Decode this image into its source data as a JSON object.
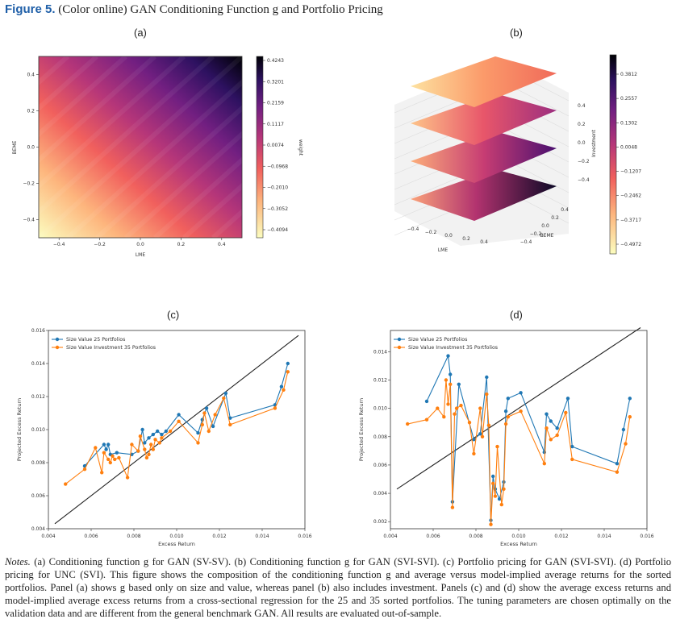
{
  "figure": {
    "label": "Figure 5.",
    "title": "(Color online) GAN Conditioning Function g and Portfolio Pricing"
  },
  "panels": {
    "a": {
      "label": "(a)"
    },
    "b": {
      "label": "(b)"
    },
    "c": {
      "label": "(c)"
    },
    "d": {
      "label": "(d)"
    }
  },
  "chart_data": [
    {
      "panel": "a",
      "type": "heatmap",
      "xlabel": "LME",
      "ylabel": "BEME",
      "x_ticks": [
        "−0.4",
        "−0.2",
        "0.0",
        "0.2",
        "0.4"
      ],
      "y_ticks": [
        "0.4",
        "0.2",
        "0.0",
        "−0.2",
        "−0.4"
      ],
      "xlim": [
        -0.5,
        0.5
      ],
      "ylim": [
        -0.5,
        0.5
      ],
      "colorbar": {
        "label": "weight",
        "range": [
          -0.4094,
          0.4243
        ],
        "ticks": [
          "0.4243",
          "0.3201",
          "0.2159",
          "0.1117",
          "0.0074",
          "−0.0968",
          "−0.2010",
          "−0.3052",
          "−0.4094"
        ]
      },
      "colormap": "magma"
    },
    {
      "panel": "b",
      "type": "surface",
      "xlabel": "LME",
      "ylabel": "BEME",
      "zlabel": "Investment",
      "x_ticks": [
        "−0.4",
        "−0.2",
        "0.0",
        "0.2",
        "0.4"
      ],
      "y_ticks": [
        "0.4",
        "0.2",
        "0.0",
        "−0.2",
        "−0.4"
      ],
      "z_ticks": [
        "0.4",
        "0.2",
        "0.0",
        "−0.2",
        "−0.4"
      ],
      "colorbar": {
        "range": [
          -0.4972,
          0.3812
        ],
        "ticks": [
          "0.3812",
          "0.2557",
          "0.1302",
          "0.0048",
          "−0.1207",
          "−0.2462",
          "−0.3717",
          "−0.4972"
        ]
      },
      "colormap": "magma"
    },
    {
      "panel": "c",
      "type": "line",
      "xlabel": "Excess Return",
      "ylabel": "Projected Excess Return",
      "xlim": [
        0.004,
        0.016
      ],
      "ylim": [
        0.004,
        0.016
      ],
      "x_ticks": [
        "0.004",
        "0.006",
        "0.008",
        "0.010",
        "0.012",
        "0.014",
        "0.016"
      ],
      "y_ticks": [
        "0.004",
        "0.006",
        "0.008",
        "0.010",
        "0.012",
        "0.014",
        "0.016"
      ],
      "legend_position": "top-left",
      "reference_line": [
        [
          0.0043,
          0.0043
        ],
        [
          0.0157,
          0.0157
        ]
      ],
      "series": [
        {
          "name": "Size Value 25 Portfolios",
          "color": "#1f77b4",
          "points": [
            [
              0.0057,
              0.0078
            ],
            [
              0.0066,
              0.0091
            ],
            [
              0.0067,
              0.0088
            ],
            [
              0.0068,
              0.0091
            ],
            [
              0.0069,
              0.0085
            ],
            [
              0.0072,
              0.0086
            ],
            [
              0.0079,
              0.0085
            ],
            [
              0.0082,
              0.0087
            ],
            [
              0.0084,
              0.01
            ],
            [
              0.0085,
              0.0092
            ],
            [
              0.0087,
              0.0095
            ],
            [
              0.0089,
              0.0097
            ],
            [
              0.0091,
              0.0099
            ],
            [
              0.0093,
              0.0097
            ],
            [
              0.0095,
              0.0099
            ],
            [
              0.0101,
              0.0109
            ],
            [
              0.011,
              0.0098
            ],
            [
              0.0112,
              0.0106
            ],
            [
              0.0114,
              0.0113
            ],
            [
              0.0117,
              0.0102
            ],
            [
              0.0123,
              0.0122
            ],
            [
              0.0125,
              0.0107
            ],
            [
              0.0146,
              0.0115
            ],
            [
              0.0149,
              0.0126
            ],
            [
              0.0152,
              0.014
            ]
          ]
        },
        {
          "name": "Size Value Investment 35 Portfolios",
          "color": "#ff7f0e",
          "points": [
            [
              0.0048,
              0.0067
            ],
            [
              0.0057,
              0.0076
            ],
            [
              0.0062,
              0.0089
            ],
            [
              0.0065,
              0.0074
            ],
            [
              0.0066,
              0.0086
            ],
            [
              0.0068,
              0.0082
            ],
            [
              0.0069,
              0.008
            ],
            [
              0.007,
              0.0084
            ],
            [
              0.0071,
              0.0082
            ],
            [
              0.0073,
              0.0083
            ],
            [
              0.0077,
              0.0071
            ],
            [
              0.0079,
              0.0091
            ],
            [
              0.0082,
              0.0087
            ],
            [
              0.0083,
              0.0096
            ],
            [
              0.0085,
              0.0088
            ],
            [
              0.0086,
              0.0083
            ],
            [
              0.0087,
              0.0085
            ],
            [
              0.0088,
              0.0091
            ],
            [
              0.0089,
              0.0088
            ],
            [
              0.009,
              0.0094
            ],
            [
              0.0092,
              0.0092
            ],
            [
              0.0093,
              0.0095
            ],
            [
              0.0097,
              0.0099
            ],
            [
              0.0101,
              0.0105
            ],
            [
              0.011,
              0.0092
            ],
            [
              0.0112,
              0.0103
            ],
            [
              0.0113,
              0.011
            ],
            [
              0.0115,
              0.0099
            ],
            [
              0.0118,
              0.0109
            ],
            [
              0.0122,
              0.0119
            ],
            [
              0.0125,
              0.0103
            ],
            [
              0.0146,
              0.0113
            ],
            [
              0.015,
              0.0124
            ],
            [
              0.0152,
              0.0135
            ]
          ]
        }
      ]
    },
    {
      "panel": "d",
      "type": "line",
      "xlabel": "Excess Return",
      "ylabel": "Projected Excess Return",
      "xlim": [
        0.004,
        0.016
      ],
      "ylim": [
        0.0015,
        0.0155
      ],
      "x_ticks": [
        "0.004",
        "0.006",
        "0.008",
        "0.010",
        "0.012",
        "0.014",
        "0.016"
      ],
      "y_ticks": [
        "0.002",
        "0.004",
        "0.006",
        "0.008",
        "0.010",
        "0.012",
        "0.014"
      ],
      "legend_position": "top-left",
      "reference_line": [
        [
          0.0043,
          0.0043
        ],
        [
          0.0157,
          0.0157
        ]
      ],
      "series": [
        {
          "name": "Size Value 25 Portfolios",
          "color": "#1f77b4",
          "points": [
            [
              0.0057,
              0.0105
            ],
            [
              0.0067,
              0.0137
            ],
            [
              0.0068,
              0.0124
            ],
            [
              0.0069,
              0.0034
            ],
            [
              0.0072,
              0.0117
            ],
            [
              0.0079,
              0.0078
            ],
            [
              0.0082,
              0.0082
            ],
            [
              0.0085,
              0.0122
            ],
            [
              0.0087,
              0.0021
            ],
            [
              0.0088,
              0.0052
            ],
            [
              0.0089,
              0.0043
            ],
            [
              0.0091,
              0.0036
            ],
            [
              0.0093,
              0.0048
            ],
            [
              0.0094,
              0.0098
            ],
            [
              0.0095,
              0.0107
            ],
            [
              0.0101,
              0.0111
            ],
            [
              0.0112,
              0.0069
            ],
            [
              0.0113,
              0.0096
            ],
            [
              0.0115,
              0.0091
            ],
            [
              0.0118,
              0.0086
            ],
            [
              0.0123,
              0.0107
            ],
            [
              0.0125,
              0.0073
            ],
            [
              0.0146,
              0.0061
            ],
            [
              0.0149,
              0.0085
            ],
            [
              0.0152,
              0.0107
            ]
          ]
        },
        {
          "name": "Size Value Investment 35 Portfolios",
          "color": "#ff7f0e",
          "points": [
            [
              0.0048,
              0.0089
            ],
            [
              0.0057,
              0.0092
            ],
            [
              0.0062,
              0.01
            ],
            [
              0.0065,
              0.0094
            ],
            [
              0.0066,
              0.012
            ],
            [
              0.0067,
              0.0103
            ],
            [
              0.0068,
              0.0117
            ],
            [
              0.0069,
              0.003
            ],
            [
              0.007,
              0.0096
            ],
            [
              0.0071,
              0.01
            ],
            [
              0.0073,
              0.0102
            ],
            [
              0.0077,
              0.009
            ],
            [
              0.0079,
              0.0068
            ],
            [
              0.0082,
              0.01
            ],
            [
              0.0083,
              0.008
            ],
            [
              0.0085,
              0.011
            ],
            [
              0.0086,
              0.0088
            ],
            [
              0.0087,
              0.0018
            ],
            [
              0.0088,
              0.0047
            ],
            [
              0.0089,
              0.0038
            ],
            [
              0.009,
              0.0073
            ],
            [
              0.0092,
              0.0032
            ],
            [
              0.0093,
              0.0043
            ],
            [
              0.0094,
              0.0089
            ],
            [
              0.0095,
              0.0094
            ],
            [
              0.0101,
              0.0098
            ],
            [
              0.0112,
              0.0061
            ],
            [
              0.0113,
              0.0086
            ],
            [
              0.0115,
              0.0078
            ],
            [
              0.0118,
              0.0081
            ],
            [
              0.0122,
              0.0097
            ],
            [
              0.0125,
              0.0064
            ],
            [
              0.0146,
              0.0055
            ],
            [
              0.015,
              0.0075
            ],
            [
              0.0152,
              0.0094
            ]
          ]
        }
      ]
    }
  ],
  "notes": {
    "label": "Notes.",
    "text": "(a) Conditioning function g for GAN (SV-SV). (b) Conditioning function g for GAN (SVI-SVI). (c) Portfolio pricing for GAN (SVI-SVI). (d) Portfolio pricing for UNC (SVI). This figure shows the composition of the conditioning function g and average versus model-implied average returns for the sorted portfolios. Panel (a) shows g based only on size and value, whereas panel (b) also includes investment. Panels (c) and (d) show the average excess returns and model-implied average excess returns from a cross-sectional regression for the 25 and 35 sorted portfolios. The tuning parameters are chosen optimally on the validation data and are different from the general benchmark GAN. All results are evaluated out-of-sample."
  }
}
